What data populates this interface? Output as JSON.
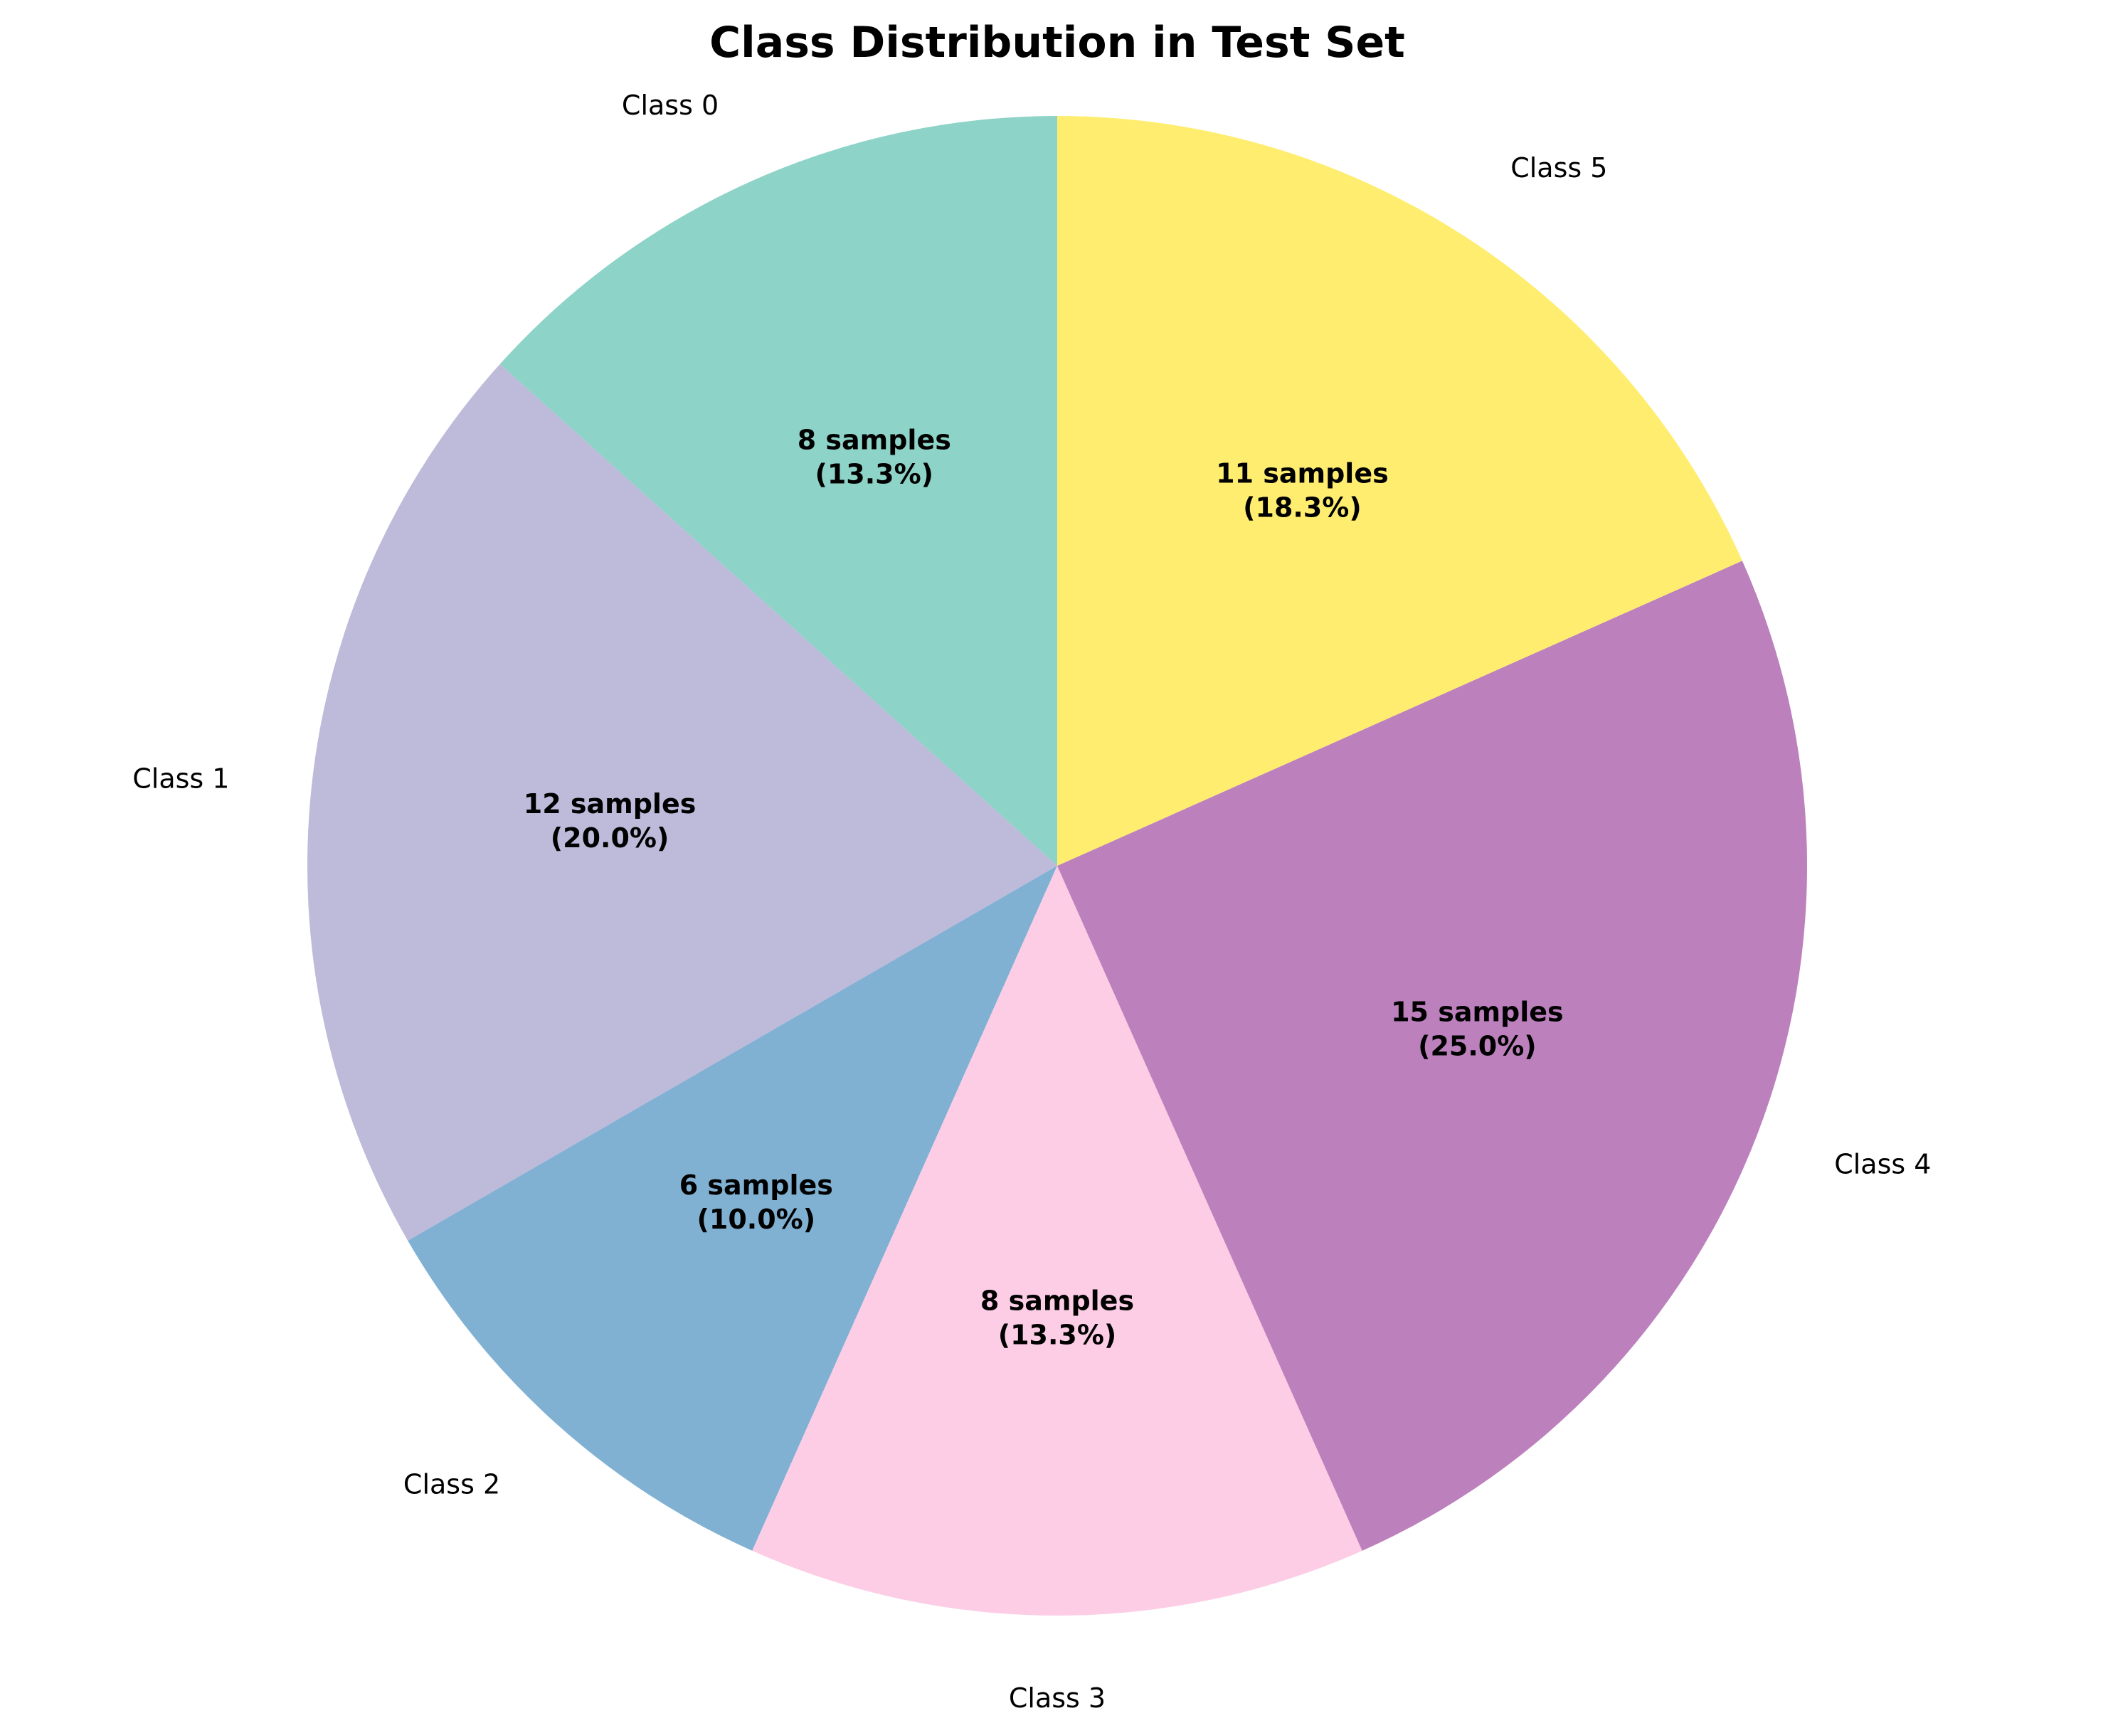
{
  "chart_data": {
    "type": "pie",
    "title": "Class Distribution in Test Set",
    "start_angle_deg": 90,
    "direction": "counterclockwise",
    "slices": [
      {
        "label": "Class 0",
        "value": 8,
        "percent": 13.3,
        "inner_text_line1": "8 samples",
        "inner_text_line2": "(13.3%)",
        "color": "#8DD3C7"
      },
      {
        "label": "Class 1",
        "value": 12,
        "percent": 20.0,
        "inner_text_line1": "12 samples",
        "inner_text_line2": "(20.0%)",
        "color": "#BEBADA"
      },
      {
        "label": "Class 2",
        "value": 6,
        "percent": 10.0,
        "inner_text_line1": "6 samples",
        "inner_text_line2": "(10.0%)",
        "color": "#80B1D3"
      },
      {
        "label": "Class 3",
        "value": 8,
        "percent": 13.3,
        "inner_text_line1": "8 samples",
        "inner_text_line2": "(13.3%)",
        "color": "#FCCDE5"
      },
      {
        "label": "Class 4",
        "value": 15,
        "percent": 25.0,
        "inner_text_line1": "15 samples",
        "inner_text_line2": "(25.0%)",
        "color": "#BC80BD"
      },
      {
        "label": "Class 5",
        "value": 11,
        "percent": 18.3,
        "inner_text_line1": "11 samples",
        "inner_text_line2": "(18.3%)",
        "color": "#FFED6F"
      }
    ]
  }
}
